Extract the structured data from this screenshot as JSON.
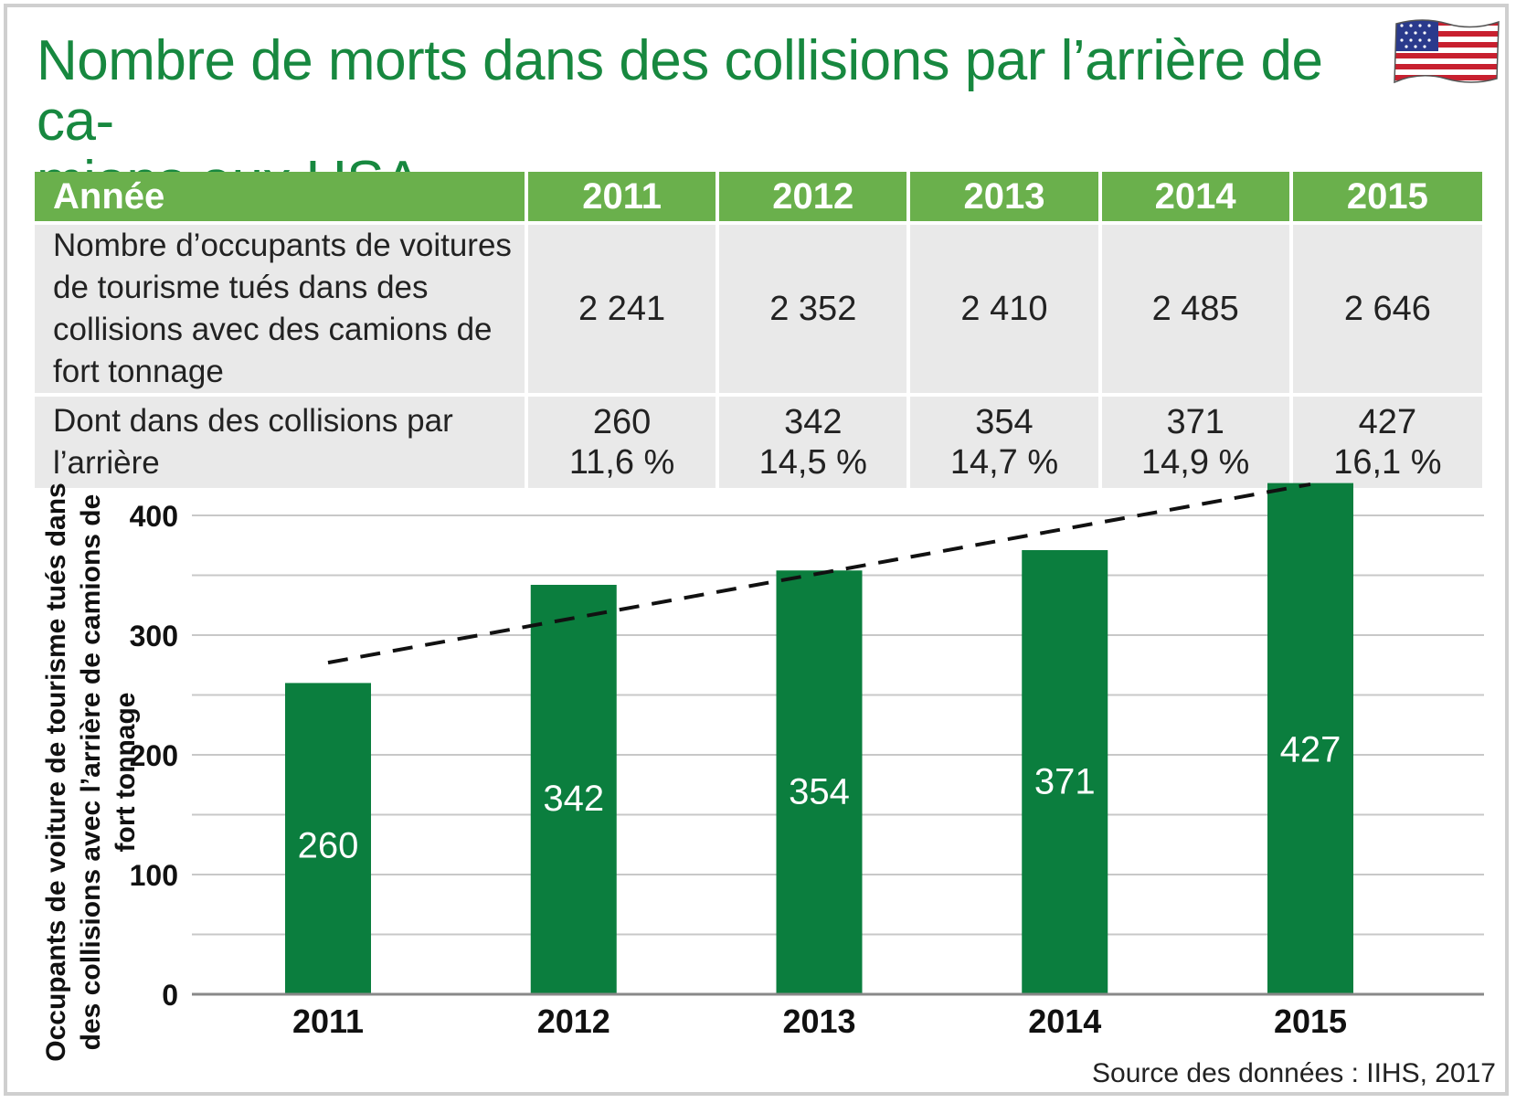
{
  "title": "Nombre de morts dans des collisions par l’arrière de ca-mions aux USA",
  "title_line1": "Nombre de morts dans des collisions par l’arrière de ca-",
  "title_line2": "mions aux USA",
  "flag_icon": "us-flag-icon",
  "colors": {
    "title": "#17883f",
    "header_bg": "#6ab04c",
    "row_bg": "#e9e9e9",
    "bar": "#0b7e3e",
    "trend": "#111111"
  },
  "table": {
    "header": [
      "Année",
      "2011",
      "2012",
      "2013",
      "2014",
      "2015"
    ],
    "row1": {
      "label": "Nombre d’occupants de voitures de tourisme tués dans des collisions avec des camions de fort tonnage",
      "values": [
        "2 241",
        "2 352",
        "2 410",
        "2 485",
        "2 646"
      ]
    },
    "row2": {
      "label": "Dont dans des collisions par l’arrière",
      "counts": [
        "260",
        "342",
        "354",
        "371",
        "427"
      ],
      "percents": [
        "11,6 %",
        "14,5 %",
        "14,7 %",
        "14,9 %",
        "16,1 %"
      ]
    }
  },
  "chart_data": {
    "type": "bar",
    "categories": [
      "2011",
      "2012",
      "2013",
      "2014",
      "2015"
    ],
    "values": [
      260,
      342,
      354,
      371,
      427
    ],
    "data_labels": [
      "260",
      "342",
      "354",
      "371",
      "427"
    ],
    "ylabel": "Occupants de voiture de tourisme tués dans des collisions avec l’arrière de camions de fort tonnage",
    "ylim": [
      0,
      400
    ],
    "yticks": [
      "0",
      "100",
      "200",
      "300",
      "400"
    ],
    "ytick_values": [
      0,
      100,
      200,
      300,
      400
    ],
    "grid": true,
    "trendline": {
      "style": "dashed",
      "from": [
        2011,
        277
      ],
      "to": [
        2015,
        426
      ]
    }
  },
  "source": "Source des données : IIHS, 2017"
}
